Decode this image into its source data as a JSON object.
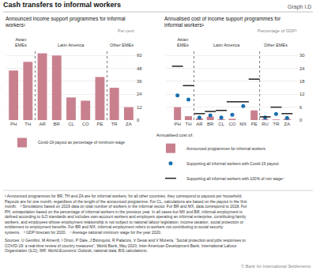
{
  "title": "Cash transfers to informal workers",
  "subtitle": "Graph I.D",
  "footnotes": [
    "¹ Announced programmes for BR, TH and ZA are for informal workers; for all other countries, they correspond to payouts per household.",
    "Payouts are for one month, regardless of the length of the announced programme. For CL, calculations are based on the payout in the first",
    "month.   ² Simulations based on 2019 data on total number of workers in the informal sector. For BR and MX, data correspond to 2018. For",
    "PH, extrapolation based on the percentage of informal workers in the previous year. In all cases but MX and BR, informal employment is",
    "defined according to ILO standards and includes own-account workers and employers operating an informal enterprise, contributing family",
    "workers, and employees whose employment relationship is not subject to national labour legislation, income taxation, social protection or",
    "entitlement to employment benefits. For BR and MX, informal employment refers to workers not contributing to social security",
    "systems.   ³ GDP forecast for 2020.   ⁴ Average national minimum wage for the year 2020."
  ],
  "sources": [
    "Sources: U Gentilini, M Almenfi, I Orton, P Dale, J Blomquist, R Palacios, V Desai and V Moreira, “Social protection and jobs responses to",
    "COVID-19: a real-time review of country measures”, World Bank, May 2020; Inter-American Development Bank; International Labour",
    "Organization (ILO); IMF, World Economic Outlook; national data; BIS calculations."
  ],
  "copyright": "© Bank for International Settlements",
  "chart_data": [
    {
      "type": "bar",
      "title": "Announced income support programmes for informal\nworkers¹",
      "ylabel": "Per cent",
      "categories": [
        "PH",
        "TH",
        "AR",
        "BR",
        "CL",
        "CO",
        "PE",
        "TR",
        "ZA"
      ],
      "series": [
        {
          "name": "Covid-19 payout as percentage of minimum wage",
          "type": "bar",
          "color": "#c9808e",
          "values": [
            46,
            54,
            62,
            60,
            21,
            18,
            40,
            30,
            12
          ]
        }
      ],
      "ylim": [
        0,
        66
      ],
      "yticks": [
        0,
        12,
        24,
        36,
        48,
        60
      ],
      "grid": true,
      "legend": "below",
      "groups": [
        {
          "label": "Asian\nEMEs",
          "categories": [
            "PH",
            "TH"
          ]
        },
        {
          "label": "Latin America",
          "categories": [
            "AR",
            "BR",
            "CL",
            "CO",
            "PE"
          ]
        },
        {
          "label": "Other EMEs",
          "categories": [
            "TR",
            "ZA"
          ]
        }
      ]
    },
    {
      "type": "bar",
      "title": "Annualised cost of income support programmes for\ninformal workers²",
      "ylabel": "Percentage of GDP³",
      "categories": [
        "PH",
        "TH",
        "AR",
        "BR",
        "CL",
        "CO",
        "MX",
        "PE",
        "RU",
        "TR",
        "ZA"
      ],
      "series": [
        {
          "name": "Announced programmes for informal workers",
          "type": "bar",
          "color": "#c9808e",
          "values": [
            6.0,
            1.8,
            0.8,
            1.6,
            0.4,
            0.6,
            0.0,
            4.5,
            0.4,
            0.3,
            0.6
          ]
        },
        {
          "name": "Supporting all informal workers with Covid-19 payout",
          "type": "scatter",
          "marker": "circle",
          "color": "#1a6faf",
          "values": [
            11.5,
            9.5,
            1.2,
            2.2,
            1.2,
            2.5,
            6.5,
            null,
            1.2,
            2.8,
            1.0
          ]
        },
        {
          "name": "Supporting all informal workers with 100% of min wage⁴",
          "type": "scatter",
          "marker": "dash",
          "color": "#222222",
          "values": [
            25.0,
            16.0,
            3.0,
            4.0,
            4.5,
            8.5,
            8.5,
            19.0,
            1.5,
            6.0,
            3.0
          ]
        }
      ],
      "ylim": [
        0,
        33
      ],
      "yticks": [
        0,
        6,
        12,
        18,
        24,
        30
      ],
      "grid": true,
      "legend": "below",
      "legend_title": "Annualised cost of:",
      "groups": [
        {
          "label": "Asian\nEMEs",
          "categories": [
            "PH",
            "TH"
          ]
        },
        {
          "label": "Latin America",
          "categories": [
            "AR",
            "BR",
            "CL",
            "CO",
            "MX",
            "PE"
          ]
        },
        {
          "label": "Other EMEs",
          "categories": [
            "RU",
            "TR",
            "ZA"
          ]
        }
      ]
    }
  ]
}
